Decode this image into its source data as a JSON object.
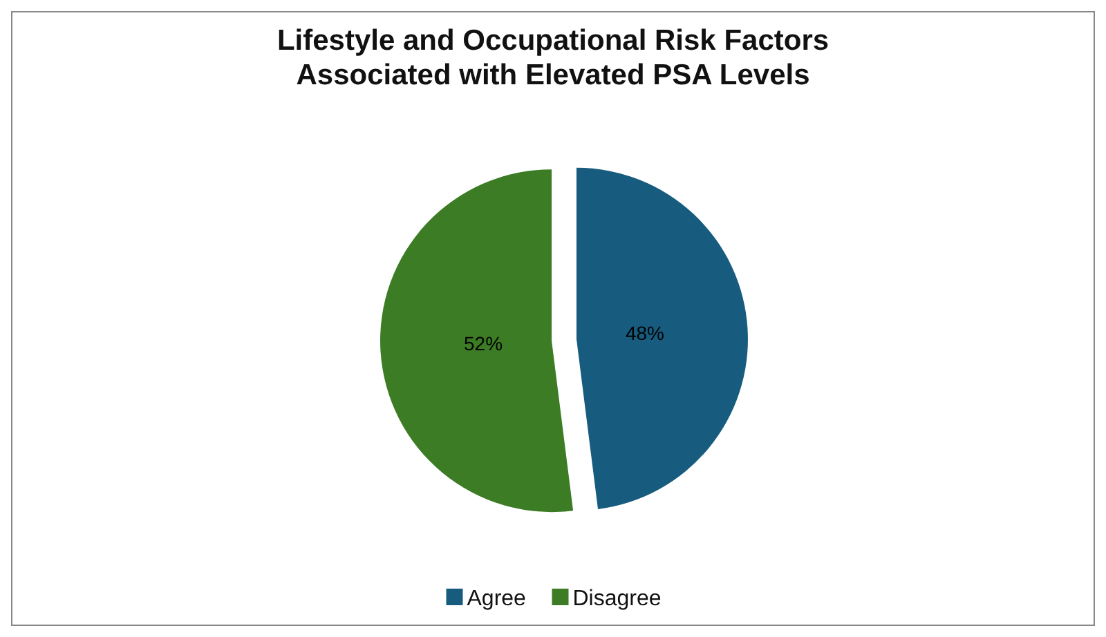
{
  "chart_data": {
    "type": "pie",
    "title": "Lifestyle and Occupational Risk Factors\nAssociated with Elevated PSA Levels",
    "categories": [
      "Agree",
      "Disagree"
    ],
    "values": [
      48,
      52
    ],
    "colors": [
      "#175c7e",
      "#3b7c24"
    ],
    "value_labels": [
      "48%",
      "52%"
    ],
    "legend": "bottom"
  }
}
